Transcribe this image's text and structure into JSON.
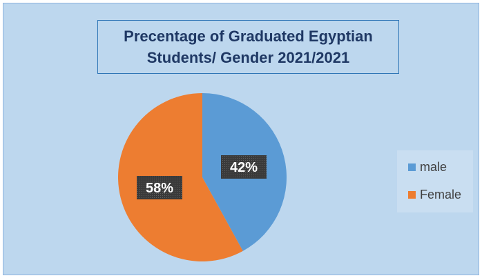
{
  "chart_data": {
    "type": "pie",
    "title": "Precentage of Graduated Egyptian\nStudents/ Gender 2021/2021",
    "categories": [
      "male",
      "Female"
    ],
    "values": [
      42,
      58
    ],
    "labels": [
      "42%",
      "58%"
    ],
    "colors": [
      "#5b9bd5",
      "#ed7d31"
    ],
    "legend_position": "right"
  }
}
